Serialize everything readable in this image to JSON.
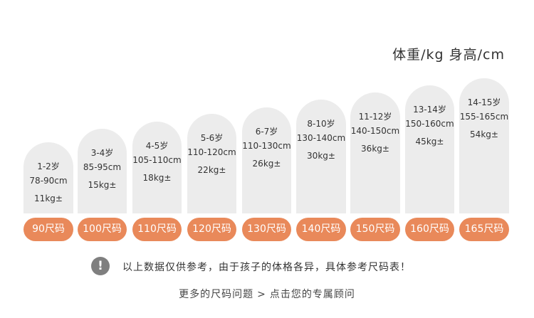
{
  "header": {
    "title": "体重/kg 身高/cm"
  },
  "sizes": [
    {
      "age": "1-2岁",
      "height": "78-90cm",
      "weight": "11kg±",
      "label": "90尺码"
    },
    {
      "age": "3-4岁",
      "height": "85-95cm",
      "weight": "15kg±",
      "label": "100尺码"
    },
    {
      "age": "4-5岁",
      "height": "105-110cm",
      "weight": "18kg±",
      "label": "110尺码"
    },
    {
      "age": "5-6岁",
      "height": "110-120cm",
      "weight": "22kg±",
      "label": "120尺码"
    },
    {
      "age": "6-7岁",
      "height": "110-130cm",
      "weight": "26kg±",
      "label": "130尺码"
    },
    {
      "age": "8-10岁",
      "height": "130-140cm",
      "weight": "30kg±",
      "label": "140尺码"
    },
    {
      "age": "11-12岁",
      "height": "140-150cm",
      "weight": "36kg±",
      "label": "150尺码"
    },
    {
      "age": "13-14岁",
      "height": "150-160cm",
      "weight": "45kg±",
      "label": "160尺码"
    },
    {
      "age": "14-15岁",
      "height": "155-165cm",
      "weight": "54kg±",
      "label": "165尺码"
    }
  ],
  "notice": {
    "icon": "!",
    "text": "以上数据仅供参考，由于孩子的体格各异，具体参考尺码表！"
  },
  "footer": {
    "link_left": "更多的尺码问题",
    "separator": ">",
    "link_right": "点击您的专属顾问"
  },
  "colors": {
    "accent": "#e9895a",
    "card": "#ececec"
  }
}
